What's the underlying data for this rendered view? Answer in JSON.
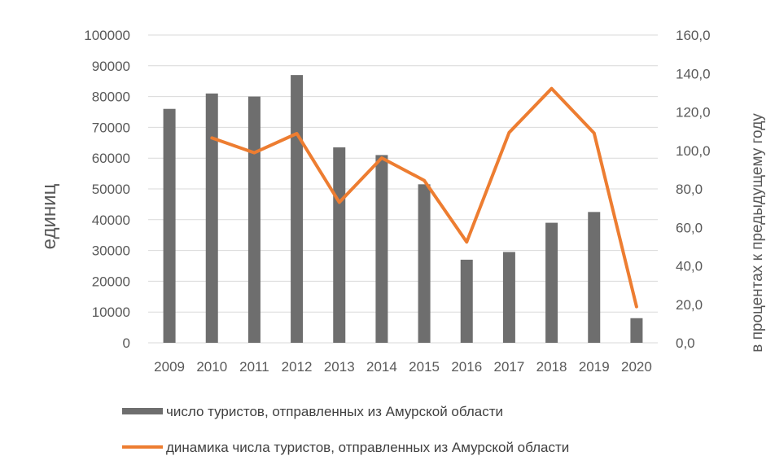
{
  "chart_data": {
    "type": "bar",
    "categories": [
      "2009",
      "2010",
      "2011",
      "2012",
      "2013",
      "2014",
      "2015",
      "2016",
      "2017",
      "2018",
      "2019",
      "2020"
    ],
    "series": [
      {
        "name": "число туристов, отправленных из Амурской области",
        "type": "bar",
        "axis": "left",
        "color": "#6e6e6e",
        "values": [
          76000,
          81000,
          80000,
          87000,
          63500,
          61000,
          51500,
          27000,
          29500,
          39000,
          42500,
          8000
        ]
      },
      {
        "name": "динамика числа туристов, отправленных из Амурской области",
        "type": "line",
        "axis": "right",
        "color": "#ed7d31",
        "values": [
          null,
          106.5,
          98.8,
          108.8,
          73.0,
          96.1,
          84.4,
          52.4,
          109.3,
          132.2,
          109.0,
          18.8
        ]
      }
    ],
    "ylabel": "единиц",
    "y2label": "в процентах к предыдущему году",
    "ylim": [
      0,
      100000
    ],
    "y2lim": [
      0,
      160
    ],
    "yticks": [
      "100000",
      "90000",
      "80000",
      "70000",
      "60000",
      "50000",
      "40000",
      "30000",
      "20000",
      "10000",
      "0"
    ],
    "y2ticks": [
      "160,0",
      "140,0",
      "120,0",
      "100,0",
      "80,0",
      "60,0",
      "40,0",
      "20,0",
      "0,0"
    ],
    "grid": true,
    "legend_position": "bottom"
  }
}
